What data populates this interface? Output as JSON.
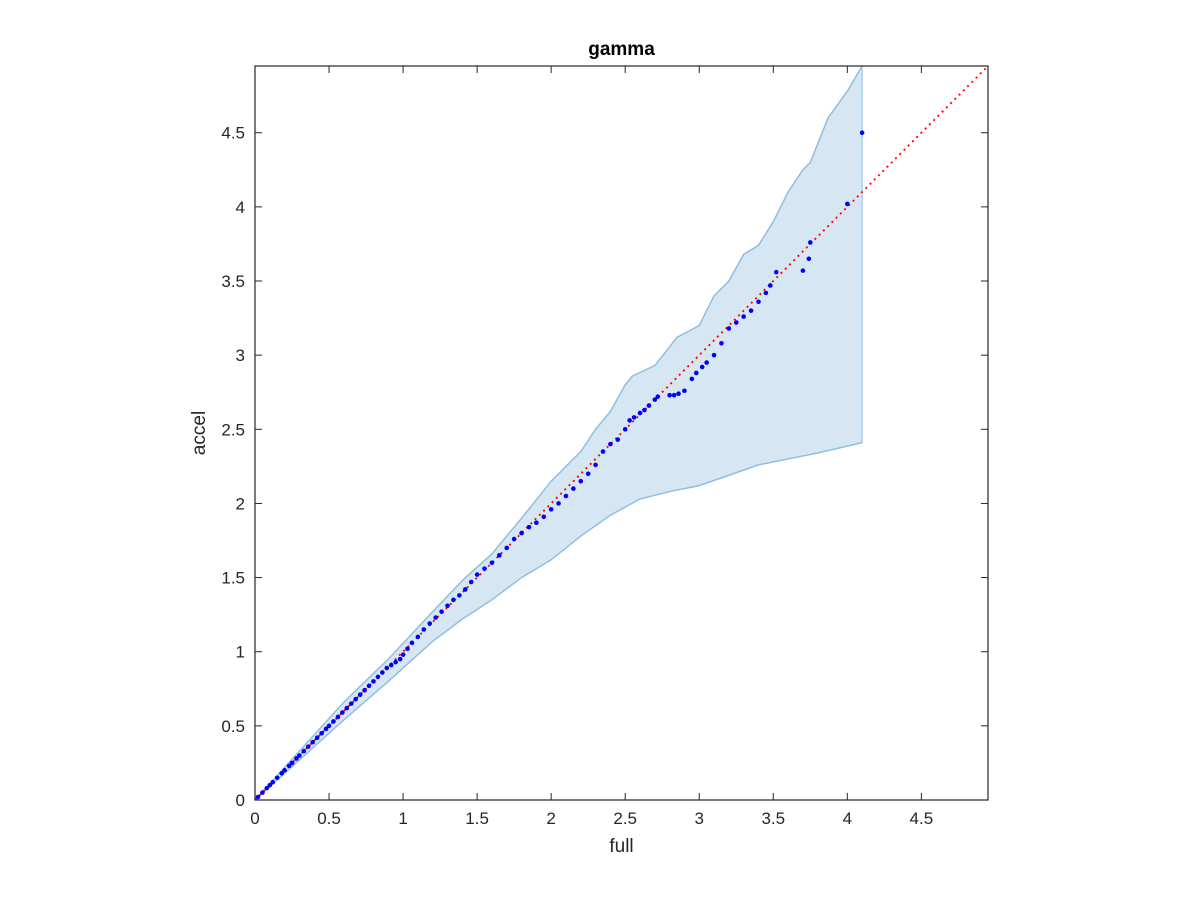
{
  "chart_data": {
    "type": "scatter",
    "title": "gamma",
    "xlabel": "full",
    "ylabel": "accel",
    "xlim": [
      0,
      4.95
    ],
    "ylim": [
      0,
      4.95
    ],
    "xticks": [
      "0",
      "0.5",
      "1",
      "1.5",
      "2",
      "2.5",
      "3",
      "3.5",
      "4",
      "4.5"
    ],
    "yticks": [
      "0",
      "0.5",
      "1",
      "1.5",
      "2",
      "2.5",
      "3",
      "3.5",
      "4",
      "4.5"
    ],
    "grid": false,
    "legend": "none",
    "reference_line": {
      "from": [
        0,
        0
      ],
      "to": [
        4.95,
        4.95
      ],
      "style": "dotted",
      "color": "#ff0000"
    },
    "band": {
      "color_fill": "#d6e6f3",
      "color_edge": "#8fbfe0",
      "upper": [
        [
          0,
          0
        ],
        [
          0.3,
          0.33
        ],
        [
          0.6,
          0.66
        ],
        [
          0.9,
          0.95
        ],
        [
          1.2,
          1.27
        ],
        [
          1.4,
          1.48
        ],
        [
          1.6,
          1.66
        ],
        [
          1.8,
          1.9
        ],
        [
          2.0,
          2.15
        ],
        [
          2.2,
          2.35
        ],
        [
          2.3,
          2.5
        ],
        [
          2.4,
          2.62
        ],
        [
          2.5,
          2.8
        ],
        [
          2.55,
          2.86
        ],
        [
          2.7,
          2.93
        ],
        [
          2.85,
          3.12
        ],
        [
          3.0,
          3.2
        ],
        [
          3.1,
          3.4
        ],
        [
          3.2,
          3.5
        ],
        [
          3.3,
          3.68
        ],
        [
          3.4,
          3.74
        ],
        [
          3.5,
          3.9
        ],
        [
          3.6,
          4.1
        ],
        [
          3.7,
          4.25
        ],
        [
          3.75,
          4.3
        ],
        [
          3.83,
          4.5
        ],
        [
          3.87,
          4.6
        ],
        [
          4.0,
          4.78
        ],
        [
          4.1,
          4.95
        ]
      ],
      "lower": [
        [
          0,
          0
        ],
        [
          0.3,
          0.27
        ],
        [
          0.6,
          0.54
        ],
        [
          0.9,
          0.8
        ],
        [
          1.2,
          1.07
        ],
        [
          1.4,
          1.22
        ],
        [
          1.6,
          1.35
        ],
        [
          1.8,
          1.5
        ],
        [
          2.0,
          1.62
        ],
        [
          2.2,
          1.78
        ],
        [
          2.4,
          1.92
        ],
        [
          2.6,
          2.03
        ],
        [
          2.8,
          2.08
        ],
        [
          3.0,
          2.12
        ],
        [
          3.2,
          2.19
        ],
        [
          3.4,
          2.26
        ],
        [
          3.6,
          2.3
        ],
        [
          3.8,
          2.34
        ],
        [
          4.1,
          2.41
        ]
      ]
    },
    "series": [
      {
        "color": "#0000ff",
        "points": [
          [
            0.02,
            0.02
          ],
          [
            0.05,
            0.05
          ],
          [
            0.08,
            0.08
          ],
          [
            0.1,
            0.1
          ],
          [
            0.12,
            0.12
          ],
          [
            0.15,
            0.15
          ],
          [
            0.18,
            0.18
          ],
          [
            0.2,
            0.2
          ],
          [
            0.23,
            0.23
          ],
          [
            0.25,
            0.25
          ],
          [
            0.28,
            0.28
          ],
          [
            0.3,
            0.3
          ],
          [
            0.33,
            0.33
          ],
          [
            0.36,
            0.36
          ],
          [
            0.39,
            0.39
          ],
          [
            0.42,
            0.42
          ],
          [
            0.45,
            0.45
          ],
          [
            0.48,
            0.48
          ],
          [
            0.5,
            0.5
          ],
          [
            0.53,
            0.53
          ],
          [
            0.56,
            0.56
          ],
          [
            0.59,
            0.59
          ],
          [
            0.62,
            0.62
          ],
          [
            0.65,
            0.65
          ],
          [
            0.68,
            0.68
          ],
          [
            0.71,
            0.71
          ],
          [
            0.74,
            0.74
          ],
          [
            0.77,
            0.77
          ],
          [
            0.8,
            0.8
          ],
          [
            0.83,
            0.83
          ],
          [
            0.86,
            0.86
          ],
          [
            0.89,
            0.89
          ],
          [
            0.92,
            0.91
          ],
          [
            0.95,
            0.93
          ],
          [
            0.98,
            0.95
          ],
          [
            1.0,
            0.98
          ],
          [
            1.03,
            1.02
          ],
          [
            1.06,
            1.06
          ],
          [
            1.1,
            1.1
          ],
          [
            1.14,
            1.15
          ],
          [
            1.18,
            1.19
          ],
          [
            1.22,
            1.23
          ],
          [
            1.26,
            1.27
          ],
          [
            1.3,
            1.31
          ],
          [
            1.34,
            1.35
          ],
          [
            1.38,
            1.38
          ],
          [
            1.42,
            1.42
          ],
          [
            1.46,
            1.47
          ],
          [
            1.5,
            1.52
          ],
          [
            1.55,
            1.56
          ],
          [
            1.6,
            1.6
          ],
          [
            1.65,
            1.65
          ],
          [
            1.7,
            1.7
          ],
          [
            1.75,
            1.76
          ],
          [
            1.8,
            1.8
          ],
          [
            1.85,
            1.84
          ],
          [
            1.9,
            1.87
          ],
          [
            1.95,
            1.91
          ],
          [
            2.0,
            1.96
          ],
          [
            2.05,
            2.0
          ],
          [
            2.1,
            2.05
          ],
          [
            2.15,
            2.1
          ],
          [
            2.2,
            2.15
          ],
          [
            2.25,
            2.2
          ],
          [
            2.3,
            2.26
          ],
          [
            2.35,
            2.35
          ],
          [
            2.4,
            2.4
          ],
          [
            2.45,
            2.43
          ],
          [
            2.5,
            2.5
          ],
          [
            2.53,
            2.56
          ],
          [
            2.56,
            2.58
          ],
          [
            2.6,
            2.61
          ],
          [
            2.63,
            2.63
          ],
          [
            2.66,
            2.66
          ],
          [
            2.7,
            2.7
          ],
          [
            2.72,
            2.72
          ],
          [
            2.8,
            2.73
          ],
          [
            2.83,
            2.73
          ],
          [
            2.86,
            2.74
          ],
          [
            2.9,
            2.76
          ],
          [
            2.95,
            2.84
          ],
          [
            2.98,
            2.88
          ],
          [
            3.02,
            2.92
          ],
          [
            3.05,
            2.95
          ],
          [
            3.1,
            3.0
          ],
          [
            3.15,
            3.08
          ],
          [
            3.2,
            3.18
          ],
          [
            3.25,
            3.22
          ],
          [
            3.3,
            3.26
          ],
          [
            3.35,
            3.3
          ],
          [
            3.4,
            3.36
          ],
          [
            3.45,
            3.42
          ],
          [
            3.48,
            3.47
          ],
          [
            3.52,
            3.56
          ],
          [
            3.7,
            3.57
          ],
          [
            3.74,
            3.65
          ],
          [
            3.75,
            3.76
          ],
          [
            4.0,
            4.02
          ],
          [
            4.1,
            4.5
          ]
        ]
      }
    ]
  }
}
